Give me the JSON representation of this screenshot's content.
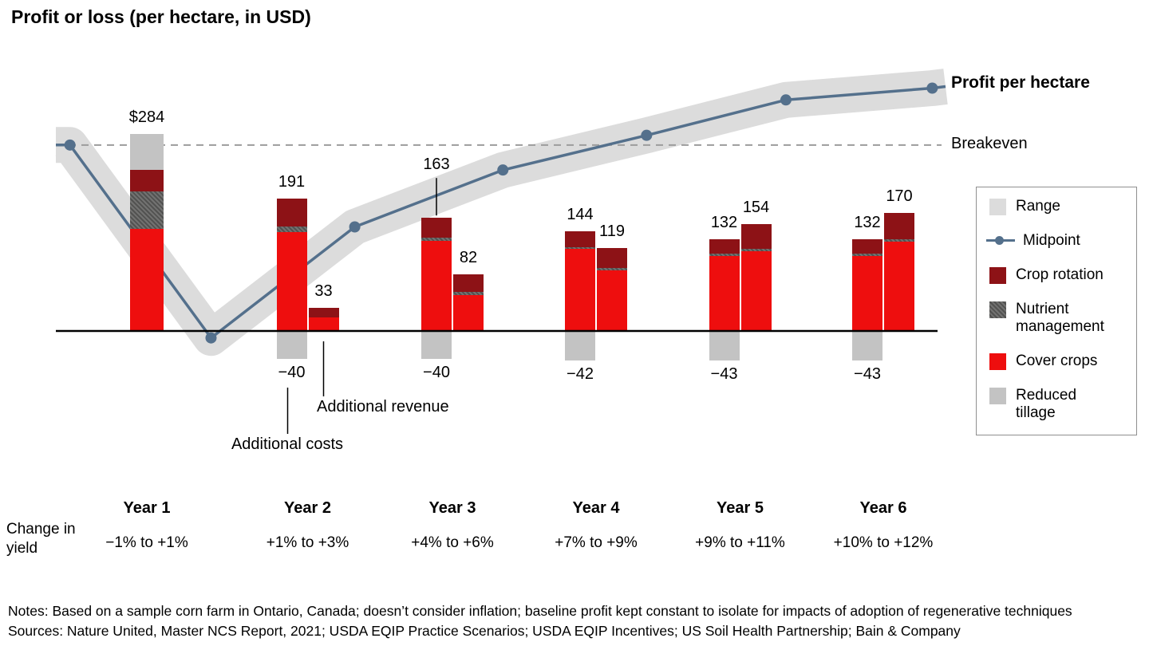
{
  "title": "Profit or loss (per hectare, in USD)",
  "annotations": {
    "profit_line_label": "Profit per hectare",
    "breakeven_label": "Breakeven",
    "additional_costs_label": "Additional costs",
    "additional_revenue_label": "Additional revenue",
    "change_in_yield_label": "Change in yield"
  },
  "legend": {
    "range": "Range",
    "midpoint": "Midpoint",
    "crop_rotation": "Crop rotation",
    "nutrient_management": "Nutrient\nmanagement",
    "cover_crops": "Cover crops",
    "reduced_tillage": "Reduced\ntillage"
  },
  "colors": {
    "crop_rotation": "#8d1216",
    "nutrient_management": "#575756",
    "cover_crops": "#ee0e0e",
    "reduced_tillage": "#c3c3c3",
    "range_band": "#dcdcdc",
    "midpoint_line": "#54708c",
    "breakeven_line": "#9c9c9c",
    "axis": "#000000"
  },
  "notes": "Notes: Based on a sample corn farm in Ontario, Canada; doesn’t consider inflation; baseline profit kept constant to isolate for impacts of adoption of regenerative techniques",
  "sources": "Sources: Nature United, Master NCS Report, 2021; USDA EQIP Practice Scenarios; USDA EQIP Incentives; US Soil Health Partnership; Bain & Company",
  "chart_data": {
    "type": "bar+line",
    "unit": "USD per hectare",
    "title": "Profit or loss (per hectare, in USD)",
    "groups": [
      {
        "year": "Year 1",
        "yield_change": "−1% to +1%",
        "bars": [
          {
            "role": "additional-costs",
            "label": "$284",
            "total": 284,
            "segments": [
              [
                "cover_crops",
                147
              ],
              [
                "nutrient_management",
                54
              ],
              [
                "crop_rotation",
                31
              ],
              [
                "reduced_tillage",
                52
              ]
            ]
          }
        ]
      },
      {
        "year": "Year 2",
        "yield_change": "+1% to +3%",
        "bars": [
          {
            "role": "additional-costs",
            "label": "191",
            "total": 191,
            "segments": [
              [
                "cover_crops",
                142
              ],
              [
                "nutrient_management",
                9
              ],
              [
                "crop_rotation",
                40
              ]
            ],
            "below_axis": -40,
            "below_label": "−40"
          },
          {
            "role": "additional-revenue",
            "label": "33",
            "total": 33,
            "segments": [
              [
                "cover_crops",
                20
              ],
              [
                "crop_rotation",
                13
              ]
            ]
          }
        ]
      },
      {
        "year": "Year 3",
        "yield_change": "+4% to +6%",
        "bars": [
          {
            "role": "additional-costs",
            "label": "163",
            "total": 163,
            "segments": [
              [
                "cover_crops",
                130
              ],
              [
                "nutrient_management",
                4
              ],
              [
                "crop_rotation",
                29
              ]
            ],
            "below_axis": -40,
            "below_label": "−40",
            "label_leader": true
          },
          {
            "role": "additional-revenue",
            "label": "82",
            "total": 82,
            "segments": [
              [
                "cover_crops",
                52
              ],
              [
                "nutrient_management",
                4
              ],
              [
                "crop_rotation",
                26
              ]
            ]
          }
        ]
      },
      {
        "year": "Year 4",
        "yield_change": "+7% to +9%",
        "bars": [
          {
            "role": "additional-costs",
            "label": "144",
            "total": 144,
            "segments": [
              [
                "cover_crops",
                118
              ],
              [
                "nutrient_management",
                3
              ],
              [
                "crop_rotation",
                23
              ]
            ],
            "below_axis": -42,
            "below_label": "−42"
          },
          {
            "role": "additional-revenue",
            "label": "119",
            "total": 119,
            "segments": [
              [
                "cover_crops",
                87
              ],
              [
                "nutrient_management",
                4
              ],
              [
                "crop_rotation",
                28
              ]
            ]
          }
        ]
      },
      {
        "year": "Year 5",
        "yield_change": "+9% to +11%",
        "bars": [
          {
            "role": "additional-costs",
            "label": "132",
            "total": 132,
            "segments": [
              [
                "cover_crops",
                108
              ],
              [
                "nutrient_management",
                3
              ],
              [
                "crop_rotation",
                21
              ]
            ],
            "below_axis": -43,
            "below_label": "−43"
          },
          {
            "role": "additional-revenue",
            "label": "154",
            "total": 154,
            "segments": [
              [
                "cover_crops",
                115
              ],
              [
                "nutrient_management",
                3
              ],
              [
                "crop_rotation",
                36
              ]
            ]
          }
        ]
      },
      {
        "year": "Year 6",
        "yield_change": "+10% to +12%",
        "bars": [
          {
            "role": "additional-costs",
            "label": "132",
            "total": 132,
            "segments": [
              [
                "cover_crops",
                108
              ],
              [
                "nutrient_management",
                3
              ],
              [
                "crop_rotation",
                21
              ]
            ],
            "below_axis": -43,
            "below_label": "−43"
          },
          {
            "role": "additional-revenue",
            "label": "170",
            "total": 170,
            "segments": [
              [
                "cover_crops",
                129
              ],
              [
                "nutrient_management",
                3
              ],
              [
                "crop_rotation",
                38
              ]
            ]
          }
        ]
      }
    ],
    "midpoint_line": {
      "label": "Profit per hectare",
      "breakeven_value": 268,
      "range_band_halfwidth_usd": 26,
      "points": [
        {
          "xf": 0.016,
          "value": 268
        },
        {
          "xf": 0.176,
          "value": -10
        },
        {
          "xf": 0.339,
          "value": 150
        },
        {
          "xf": 0.507,
          "value": 232
        },
        {
          "xf": 0.67,
          "value": 282
        },
        {
          "xf": 0.828,
          "value": 333
        },
        {
          "xf": 0.994,
          "value": 350
        }
      ]
    }
  }
}
